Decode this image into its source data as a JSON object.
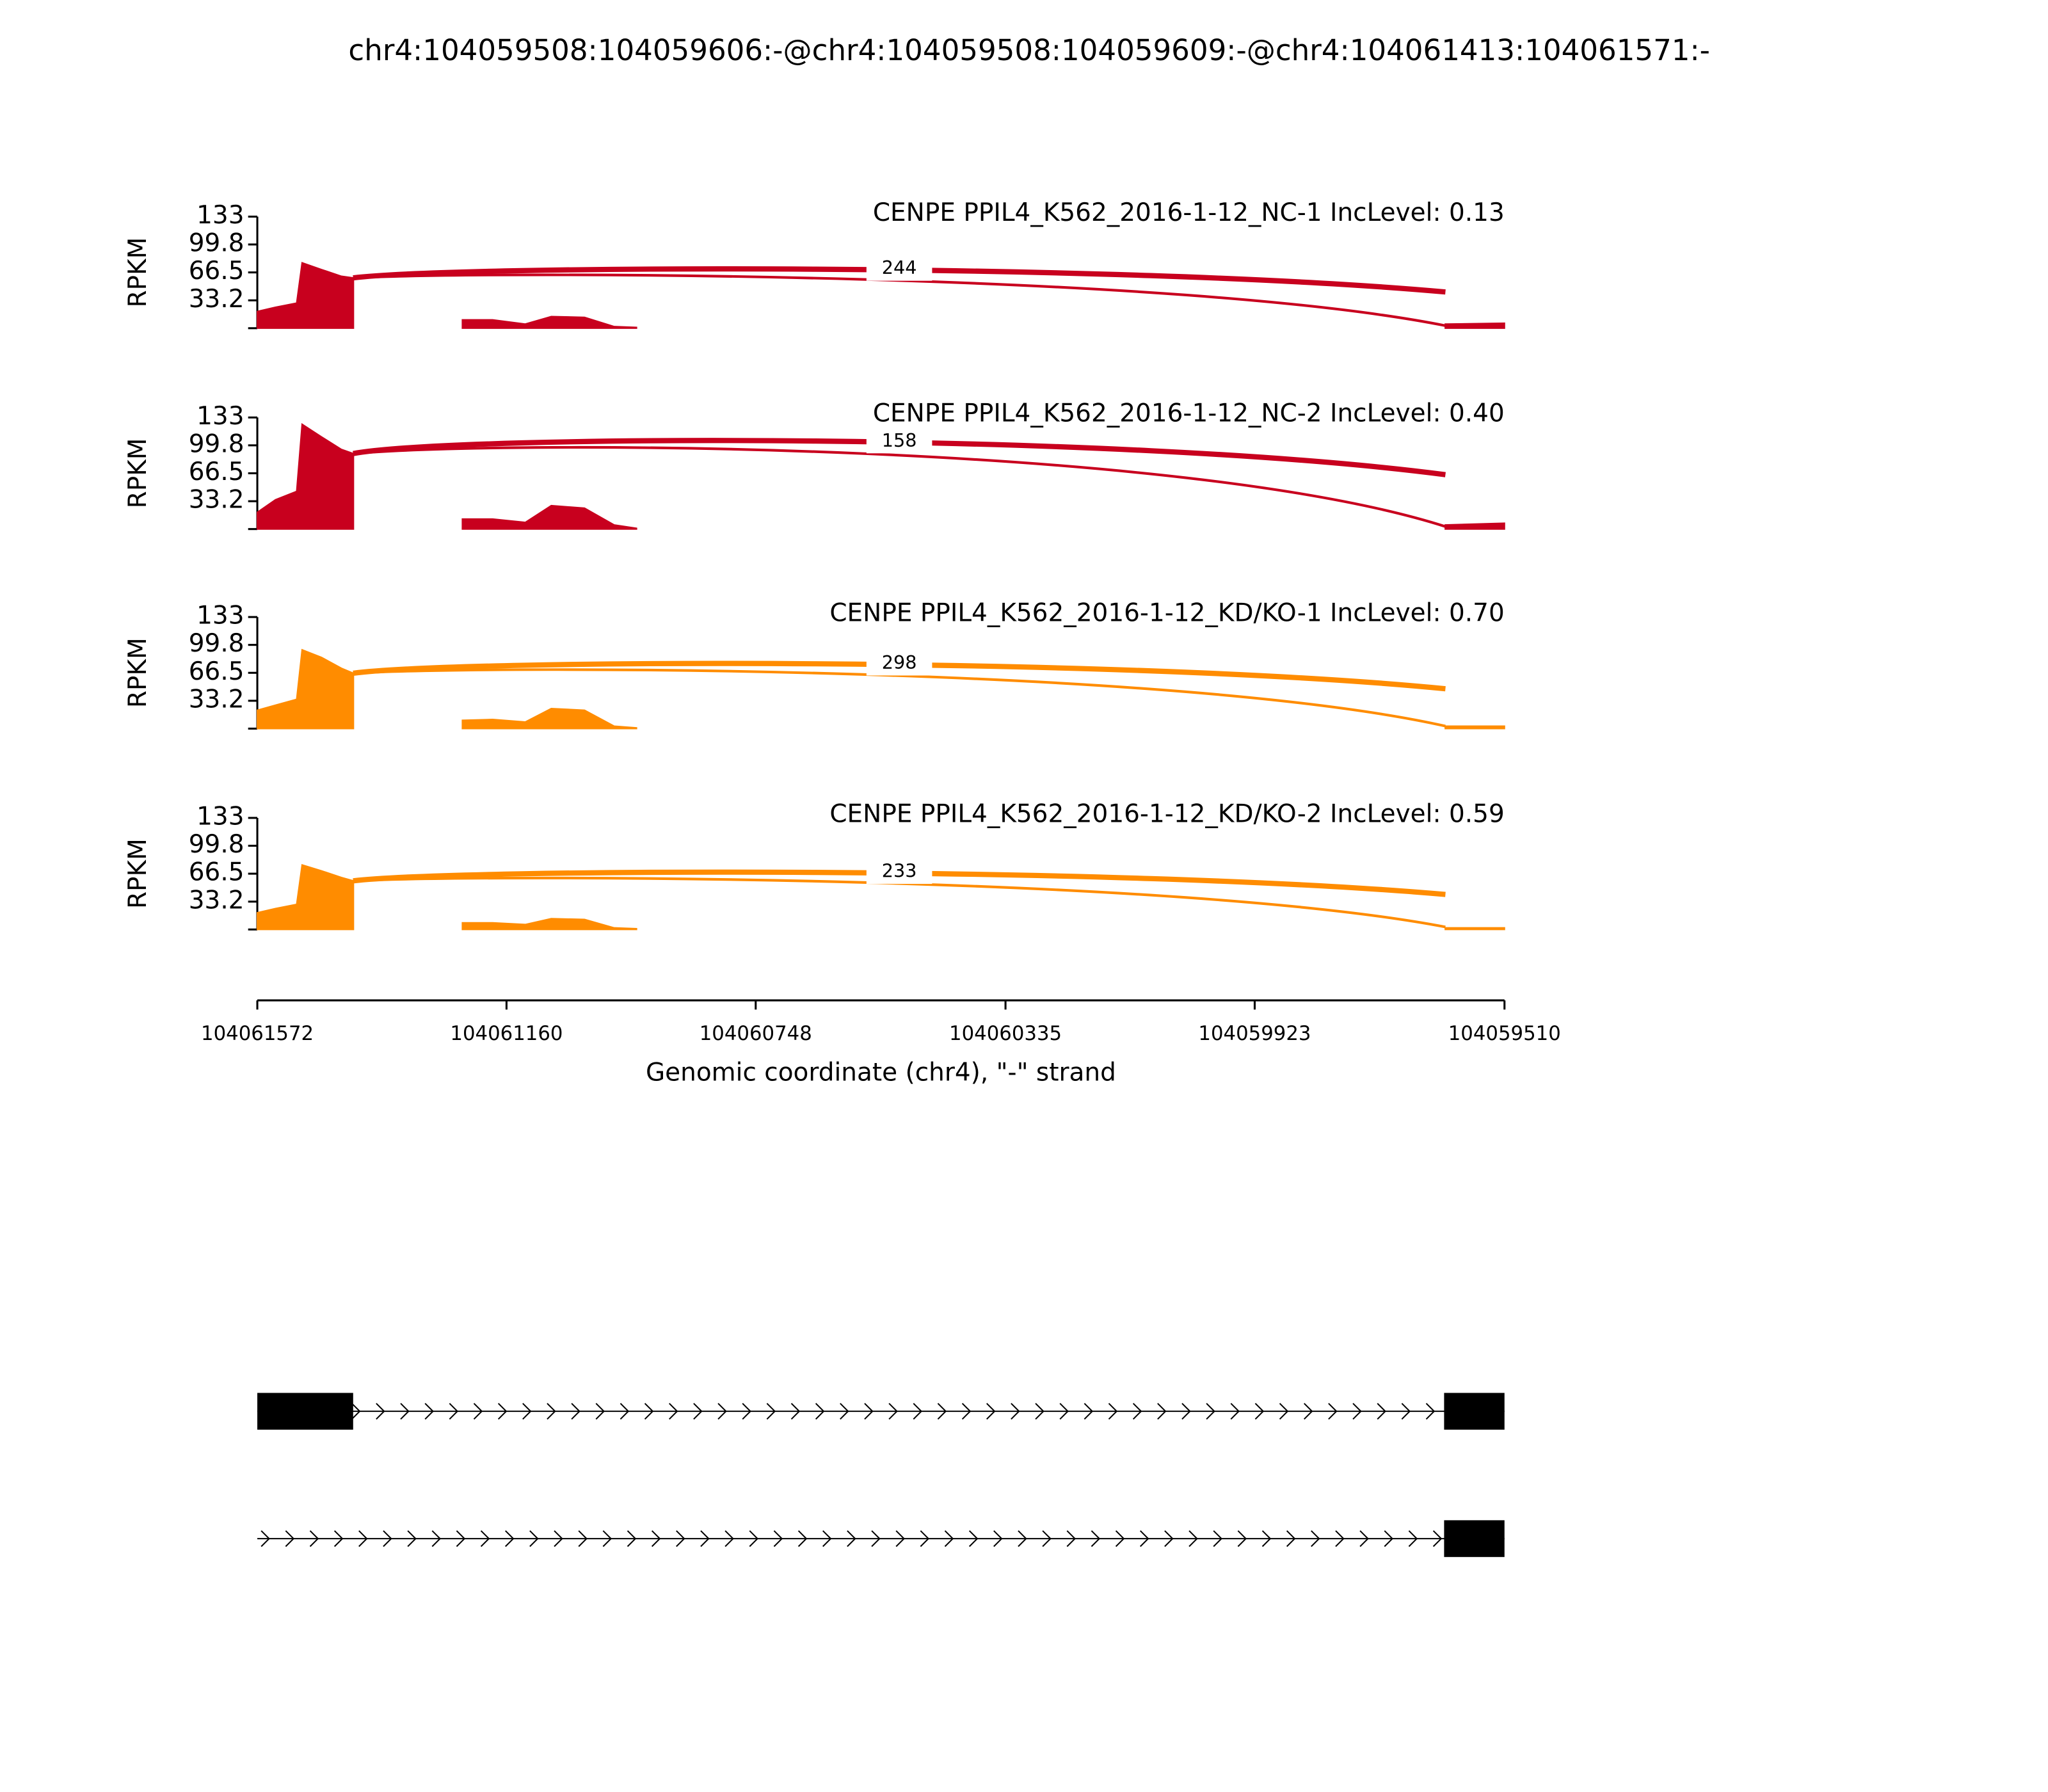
{
  "title": "chr4:104059508:104059606:-@chr4:104059508:104059609:-@chr4:104061413:104061571:-",
  "xlabel": "Genomic coordinate (chr4), \"-\" strand",
  "xlim": [
    104061572,
    104059510
  ],
  "xticks": [
    104061572,
    104061160,
    104060748,
    104060335,
    104059923,
    104059510
  ],
  "chart_data": [
    {
      "type": "area",
      "title": "CENPE PPIL4_K562_2016-1-12_NC-1 IncLevel: 0.13",
      "ylabel": "RPKM",
      "color": "#c8001e",
      "ylim": [
        0,
        133
      ],
      "yticks": [
        33.2,
        66.5,
        99.8,
        133
      ],
      "junction_count": 244,
      "x": [
        104061572,
        104061542,
        104061507,
        104061498,
        104061466,
        104061433,
        104061413,
        104061300,
        104061233,
        104061183,
        104061129,
        104061086,
        104061031,
        104060982,
        104060945,
        104060000,
        104059608,
        104059510
      ],
      "values": [
        20,
        25,
        30,
        78,
        70,
        62,
        60,
        null,
        10,
        10,
        5,
        14,
        13,
        2,
        1,
        null,
        5,
        6
      ]
    },
    {
      "type": "area",
      "title": "CENPE PPIL4_K562_2016-1-12_NC-2 IncLevel: 0.40",
      "ylabel": "RPKM",
      "color": "#c8001e",
      "ylim": [
        0,
        133
      ],
      "yticks": [
        33.2,
        66.5,
        99.8,
        133
      ],
      "junction_count": 158,
      "x": [
        104061572,
        104061542,
        104061507,
        104061498,
        104061466,
        104061433,
        104061413,
        104061300,
        104061233,
        104061183,
        104061129,
        104061086,
        104061031,
        104060982,
        104060945,
        104060000,
        104059608,
        104059510
      ],
      "values": [
        20,
        35,
        45,
        125,
        110,
        95,
        90,
        null,
        12,
        12,
        8,
        28,
        25,
        5,
        1,
        null,
        5,
        7
      ]
    },
    {
      "type": "area",
      "title": "CENPE PPIL4_K562_2016-1-12_KD/KO-1 IncLevel: 0.70",
      "ylabel": "RPKM",
      "color": "#ff8c00",
      "ylim": [
        0,
        133
      ],
      "yticks": [
        33.2,
        66.5,
        99.8,
        133
      ],
      "junction_count": 298,
      "x": [
        104061572,
        104061542,
        104061507,
        104061498,
        104061466,
        104061433,
        104061413,
        104061300,
        104061233,
        104061183,
        104061129,
        104061086,
        104061031,
        104060982,
        104060945,
        104060000,
        104059608,
        104059510
      ],
      "values": [
        22,
        28,
        35,
        94,
        85,
        72,
        66,
        null,
        10,
        11,
        8,
        24,
        22,
        3,
        1,
        null,
        3,
        3
      ]
    },
    {
      "type": "area",
      "title": "CENPE PPIL4_K562_2016-1-12_KD/KO-2 IncLevel: 0.59",
      "ylabel": "RPKM",
      "color": "#ff8c00",
      "ylim": [
        0,
        133
      ],
      "yticks": [
        33.2,
        66.5,
        99.8,
        133
      ],
      "junction_count": 233,
      "x": [
        104061572,
        104061542,
        104061507,
        104061498,
        104061466,
        104061433,
        104061413,
        104061300,
        104061233,
        104061183,
        104061129,
        104061086,
        104061031,
        104060982,
        104060945,
        104060000,
        104059608,
        104059510
      ],
      "values": [
        20,
        25,
        30,
        77,
        70,
        62,
        58,
        null,
        8,
        8,
        6,
        13,
        12,
        2,
        1,
        null,
        2,
        2
      ]
    }
  ]
}
